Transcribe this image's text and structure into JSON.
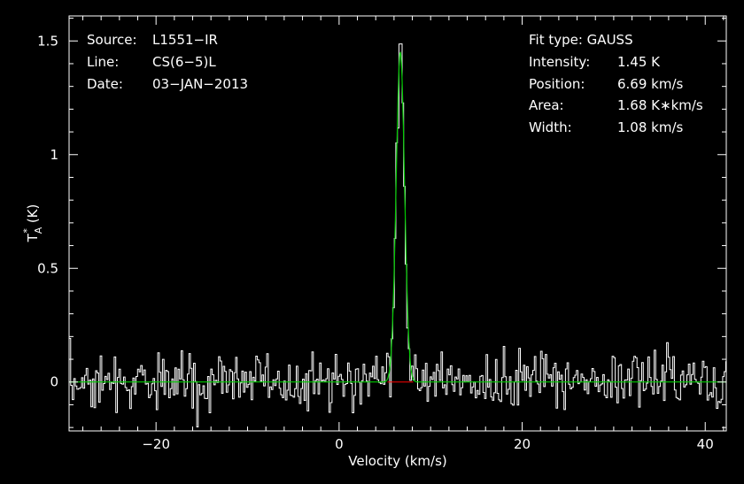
{
  "chart_data": {
    "type": "line",
    "xlabel": "Velocity (km/s)",
    "ylabel_main": "T",
    "ylabel_sub": "A",
    "ylabel_sup": "*",
    "ylabel_unit": "(K)",
    "xlim": [
      -29.5,
      42.3
    ],
    "ylim": [
      -0.215,
      1.61
    ],
    "x_ticks": [
      -20,
      0,
      20,
      40
    ],
    "x_tick_labels": [
      "−20",
      "0",
      "20",
      "40"
    ],
    "y_ticks": [
      0,
      0.5,
      1,
      1.5
    ],
    "y_tick_labels": [
      "0",
      "0.5",
      "1",
      "1.5"
    ],
    "x_minor_step": 2,
    "y_minor_step": 0.1,
    "grid": false,
    "noise_rms": 0.065,
    "channel_width_kms": 0.17,
    "series": [
      {
        "role": "observed-spectrum",
        "style": "histogram",
        "color": "#ffffff"
      },
      {
        "role": "gaussian-fit",
        "style": "line",
        "color": "#00cc00",
        "amplitude": 1.45,
        "center": 6.69,
        "fwhm": 1.08
      },
      {
        "role": "baseline",
        "style": "line",
        "color": "#ff0000",
        "value": 0
      }
    ],
    "info_left": [
      {
        "label": "Source:",
        "value": "L1551−IR"
      },
      {
        "label": "Line:",
        "value": "CS(6−5)L"
      },
      {
        "label": "Date:",
        "value": "03−JAN−2013"
      }
    ],
    "info_right_title": "Fit type: GAUSS",
    "info_right": [
      {
        "label": "Intensity:",
        "value": "1.45 K"
      },
      {
        "label": "Position:",
        "value": "6.69 km/s"
      },
      {
        "label": "Area:",
        "value": "1.68 K∗km/s"
      },
      {
        "label": "Width:",
        "value": "1.08 km/s"
      }
    ]
  }
}
